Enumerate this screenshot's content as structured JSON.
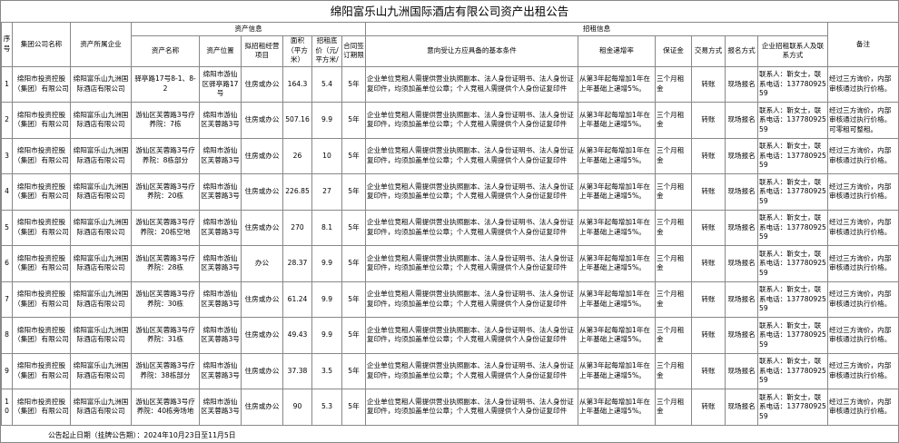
{
  "title": "绵阳富乐山九洲国际酒店有限公司资产出租公告",
  "headers": {
    "seq": "序号",
    "group": "集团公司名称",
    "company": "资产所属企业",
    "asset_info": "资产信息",
    "asset_name": "资产名称",
    "location": "资产位置",
    "use": "拟招租经营项目",
    "area": "面积（平方米）",
    "price": "招租底价（元/平方米/",
    "term": "合同签订期限",
    "lease_info": "招租信息",
    "conditions": "意向受让方应具备的基本条件",
    "increase": "租金递增率",
    "deposit": "保证金",
    "trade": "交易方式",
    "signup": "报名方式",
    "contact": "企业招租联系人及联系方式",
    "remark": "备注"
  },
  "rows": [
    {
      "seq": "1",
      "group": "绵阳市投资控股（集团）有限公司",
      "company": "绵阳富乐山九洲国际酒店有限公司",
      "asset_name": "驿亭路17号8-1、8-2",
      "location": "绵阳市游仙区驿亭路17号",
      "use": "住房或办公",
      "area": "164.3",
      "price": "5.4",
      "term": "5年",
      "conditions": "企业单位竞租人需提供营业执照副本、法人身份证明书、法人身份证复印件，均须加盖单位公章；个人竞租人需提供个人身份证复印件",
      "increase": "从第3年起每增加1年在上年基础上递增5%。",
      "deposit": "三个月租金",
      "trade": "转账",
      "signup": "现场报名",
      "contact": "联系人：靳女士，联系电话：13778092559",
      "remark": "经过三方询价，内部审核通过执行价格。"
    },
    {
      "seq": "2",
      "group": "绵阳市投资控股（集团）有限公司",
      "company": "绵阳富乐山九洲国际酒店有限公司",
      "asset_name": "游仙区芙蓉路3号疗养院：7栋",
      "location": "绵阳市游仙区芙蓉路3号",
      "use": "住房或办公",
      "area": "507.16",
      "price": "9.9",
      "term": "5年",
      "conditions": "企业单位竞租人需提供营业执照副本、法人身份证明书、法人身份证复印件，均须加盖单位公章；个人竞租人需提供个人身份证复印件",
      "increase": "从第3年起每增加1年在上年基础上递增5%。",
      "deposit": "三个月租金",
      "trade": "转账",
      "signup": "现场报名",
      "contact": "联系人：靳女士，联系电话：13778092559",
      "remark": "经过三方询价，内部审核通过执行价格。可零租可整租。"
    },
    {
      "seq": "3",
      "group": "绵阳市投资控股（集团）有限公司",
      "company": "绵阳富乐山九洲国际酒店有限公司",
      "asset_name": "游仙区芙蓉路3号疗养院：8栋部分",
      "location": "绵阳市游仙区芙蓉路3号",
      "use": "住房或办公",
      "area": "26",
      "price": "10",
      "term": "5年",
      "conditions": "企业单位竞租人需提供营业执照副本、法人身份证明书、法人身份证复印件，均须加盖单位公章；个人竞租人需提供个人身份证复印件",
      "increase": "从第3年起每增加1年在上年基础上递增5%。",
      "deposit": "三个月租金",
      "trade": "转账",
      "signup": "现场报名",
      "contact": "联系人：靳女士，联系电话：13778092559",
      "remark": "经过三方询价，内部审核通过执行价格。"
    },
    {
      "seq": "4",
      "group": "绵阳市投资控股（集团）有限公司",
      "company": "绵阳富乐山九洲国际酒店有限公司",
      "asset_name": "游仙区芙蓉路3号疗养院：20栋",
      "location": "绵阳市游仙区芙蓉路3号",
      "use": "住房或办公",
      "area": "226.85",
      "price": "27",
      "term": "5年",
      "conditions": "企业单位竞租人需提供营业执照副本、法人身份证明书、法人身份证复印件，均须加盖单位公章；个人竞租人需提供个人身份证复印件",
      "increase": "从第3年起每增加1年在上年基础上递增5%。",
      "deposit": "三个月租金",
      "trade": "转账",
      "signup": "现场报名",
      "contact": "联系人：靳女士，联系电话：13778092559",
      "remark": "经过三方询价，内部审核通过执行价格。"
    },
    {
      "seq": "5",
      "group": "绵阳市投资控股（集团）有限公司",
      "company": "绵阳富乐山九洲国际酒店有限公司",
      "asset_name": "游仙区芙蓉路3号疗养院：20栋空地",
      "location": "绵阳市游仙区芙蓉路3号",
      "use": "住房或办公",
      "area": "270",
      "price": "8.1",
      "term": "5年",
      "conditions": "企业单位竞租人需提供营业执照副本、法人身份证明书、法人身份证复印件，均须加盖单位公章；个人竞租人需提供个人身份证复印件",
      "increase": "从第3年起每增加1年在上年基础上递增5%。",
      "deposit": "三个月租金",
      "trade": "转账",
      "signup": "现场报名",
      "contact": "联系人：靳女士，联系电话：13778092559",
      "remark": "经过三方询价，内部审核通过执行价格。"
    },
    {
      "seq": "6",
      "group": "绵阳市投资控股（集团）有限公司",
      "company": "绵阳富乐山九洲国际酒店有限公司",
      "asset_name": "游仙区芙蓉路3号疗养院：28栋",
      "location": "绵阳市游仙区芙蓉路3号",
      "use": "办公",
      "area": "28.37",
      "price": "9.9",
      "term": "5年",
      "conditions": "企业单位竞租人需提供营业执照副本、法人身份证明书、法人身份证复印件，均须加盖单位公章；个人竞租人需提供个人身份证复印件",
      "increase": "从第3年起每增加1年在上年基础上递增5%。",
      "deposit": "三个月租金",
      "trade": "转账",
      "signup": "现场报名",
      "contact": "联系人：靳女士，联系电话：13778092559",
      "remark": "经过三方询价，内部审核通过执行价格。"
    },
    {
      "seq": "7",
      "group": "绵阳市投资控股（集团）有限公司",
      "company": "绵阳富乐山九洲国际酒店有限公司",
      "asset_name": "游仙区芙蓉路3号疗养院：30栋",
      "location": "绵阳市游仙区芙蓉路3号",
      "use": "住房或办公",
      "area": "61.24",
      "price": "9.9",
      "term": "5年",
      "conditions": "企业单位竞租人需提供营业执照副本、法人身份证明书、法人身份证复印件，均须加盖单位公章；个人竞租人需提供个人身份证复印件",
      "increase": "从第3年起每增加1年在上年基础上递增5%。",
      "deposit": "三个月租金",
      "trade": "转账",
      "signup": "现场报名",
      "contact": "联系人：靳女士，联系电话：13778092559",
      "remark": "经过三方询价，内部审核通过执行价格。"
    },
    {
      "seq": "8",
      "group": "绵阳市投资控股（集团）有限公司",
      "company": "绵阳富乐山九洲国际酒店有限公司",
      "asset_name": "游仙区芙蓉路3号疗养院：31栋",
      "location": "绵阳市游仙区芙蓉路3号",
      "use": "住房或办公",
      "area": "49.43",
      "price": "9.9",
      "term": "5年",
      "conditions": "企业单位竞租人需提供营业执照副本、法人身份证明书、法人身份证复印件，均须加盖单位公章；个人竞租人需提供个人身份证复印件",
      "increase": "从第3年起每增加1年在上年基础上递增5%。",
      "deposit": "三个月租金",
      "trade": "转账",
      "signup": "现场报名",
      "contact": "联系人：靳女士，联系电话：13778092559",
      "remark": "经过三方询价，内部审核通过执行价格。"
    },
    {
      "seq": "9",
      "group": "绵阳市投资控股（集团）有限公司",
      "company": "绵阳富乐山九洲国际酒店有限公司",
      "asset_name": "游仙区芙蓉路3号疗养院：38栋部分",
      "location": "绵阳市游仙区芙蓉路3号",
      "use": "住房或办公",
      "area": "37.38",
      "price": "3.5",
      "term": "5年",
      "conditions": "企业单位竞租人需提供营业执照副本、法人身份证明书、法人身份证复印件，均须加盖单位公章；个人竞租人需提供个人身份证复印件",
      "increase": "从第3年起每增加1年在上年基础上递增5%。",
      "deposit": "三个月租金",
      "trade": "转账",
      "signup": "现场报名",
      "contact": "联系人：靳女士，联系电话：13778092559",
      "remark": "经过三方询价，内部审核通过执行价格。"
    },
    {
      "seq": "10",
      "group": "绵阳市投资控股（集团）有限公司",
      "company": "绵阳富乐山九洲国际酒店有限公司",
      "asset_name": "游仙区芙蓉路3号疗养院：40栋旁场地",
      "location": "绵阳市游仙区芙蓉路3号",
      "use": "住房或办公",
      "area": "90",
      "price": "5.3",
      "term": "5年",
      "conditions": "企业单位竞租人需提供营业执照副本、法人身份证明书、法人身份证复印件，均须加盖单位公章；个人竞租人需提供个人身份证复印件",
      "increase": "从第3年起每增加1年在上年基础上递增5%。",
      "deposit": "三个月租金",
      "trade": "转账",
      "signup": "现场报名",
      "contact": "联系人：靳女士，联系电话：13778092559",
      "remark": "经过三方询价，内部审核通过执行价格。"
    }
  ],
  "footer": "公告起止日期（挂牌公告期）：2024年10月23日至11月5日"
}
